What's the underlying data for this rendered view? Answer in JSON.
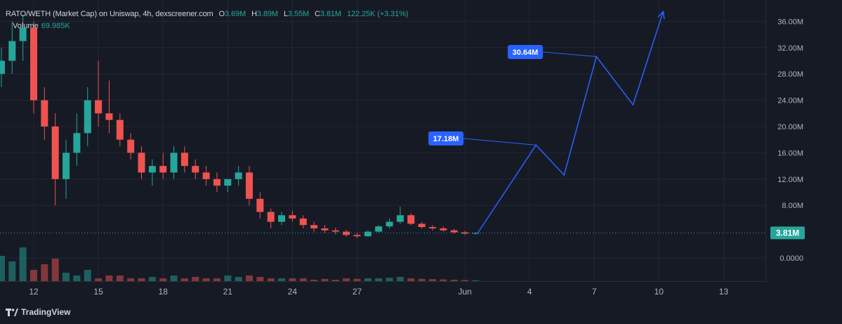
{
  "header": {
    "title": "RATO/WETH (Market Cap) on Uniswap, 4h, dexscreener.com",
    "open_label": "O",
    "open_value": "3.69M",
    "high_label": "H",
    "high_value": "3.89M",
    "low_label": "L",
    "low_value": "3.55M",
    "close_label": "C",
    "close_value": "3.81M",
    "change_value": "122.25K (+3.31%)"
  },
  "volume": {
    "label": "Volume",
    "value": "69.985K"
  },
  "brand": {
    "name": "TradingView"
  },
  "colors": {
    "background": "#161a25",
    "up": "#26a69a",
    "down": "#ef5350",
    "projection": "#2962ff",
    "grid": "#232734",
    "axis_text": "#b2b5be"
  },
  "chart_data": {
    "type": "candlestick",
    "y_axis": {
      "position": "right",
      "min": 0,
      "max": 38,
      "ticks": [
        "36.00M",
        "32.00M",
        "28.00M",
        "24.00M",
        "20.00M",
        "16.00M",
        "12.00M",
        "8.00M",
        "0.0000"
      ],
      "tick_values": [
        36,
        32,
        28,
        24,
        20,
        16,
        12,
        8,
        0
      ]
    },
    "x_axis": {
      "ticks": [
        "12",
        "15",
        "18",
        "21",
        "24",
        "27",
        "Jun",
        "4",
        "7",
        "10",
        "13"
      ],
      "tick_positions_days": [
        12,
        15,
        18,
        21,
        24,
        27,
        32,
        35,
        38,
        41,
        44
      ]
    },
    "last_price": {
      "label": "3.81M",
      "value": 3.81
    },
    "candles": [
      [
        10.0,
        25,
        30,
        24,
        28
      ],
      [
        10.5,
        28,
        32,
        26,
        30
      ],
      [
        11.0,
        30,
        36,
        28,
        33
      ],
      [
        11.5,
        33,
        37,
        30,
        35
      ],
      [
        12.0,
        35,
        36,
        22,
        24
      ],
      [
        12.5,
        24,
        26,
        18,
        20
      ],
      [
        13.0,
        20,
        22,
        8,
        12
      ],
      [
        13.5,
        12,
        18,
        9,
        16
      ],
      [
        14.0,
        16,
        22,
        14,
        19
      ],
      [
        14.5,
        19,
        26,
        17,
        24
      ],
      [
        15.0,
        24,
        30,
        20,
        22
      ],
      [
        15.5,
        22,
        27,
        19,
        21
      ],
      [
        16.0,
        21,
        22,
        17,
        18
      ],
      [
        16.5,
        18,
        19,
        15,
        16
      ],
      [
        17.0,
        16,
        17,
        12,
        13
      ],
      [
        17.5,
        13,
        15,
        11,
        14
      ],
      [
        18.0,
        14,
        16,
        12,
        13
      ],
      [
        18.5,
        13,
        17,
        12,
        16
      ],
      [
        19.0,
        16,
        17,
        13,
        14
      ],
      [
        19.5,
        14,
        15,
        12,
        13
      ],
      [
        20.0,
        13,
        14,
        11,
        12
      ],
      [
        20.5,
        12,
        13,
        10,
        11
      ],
      [
        21.0,
        11,
        12,
        10,
        12
      ],
      [
        21.5,
        12,
        14,
        11,
        13
      ],
      [
        22.0,
        13,
        14,
        8,
        9
      ],
      [
        22.5,
        9,
        10,
        6,
        7
      ],
      [
        23.0,
        7,
        7.5,
        4.5,
        5.5
      ],
      [
        23.5,
        5.5,
        7,
        5,
        6.5
      ],
      [
        24.0,
        6.5,
        7.2,
        5.5,
        6
      ],
      [
        24.5,
        6,
        6.5,
        4.5,
        5
      ],
      [
        25.0,
        5,
        5.5,
        4,
        4.5
      ],
      [
        25.5,
        4.5,
        5,
        3.8,
        4.2
      ],
      [
        26.0,
        4.2,
        4.6,
        3.6,
        4
      ],
      [
        26.5,
        4,
        4.3,
        3.2,
        3.5
      ],
      [
        27.0,
        3.5,
        3.9,
        3,
        3.3
      ],
      [
        27.5,
        3.3,
        4.2,
        3.2,
        4
      ],
      [
        28.0,
        4,
        5,
        3.9,
        4.8
      ],
      [
        28.5,
        4.8,
        6,
        4.5,
        5.5
      ],
      [
        29.0,
        5.5,
        7.8,
        5.2,
        6.5
      ],
      [
        29.5,
        6.5,
        6.8,
        5,
        5.2
      ],
      [
        30.0,
        5.2,
        5.5,
        4.5,
        4.7
      ],
      [
        30.5,
        4.7,
        5,
        4.2,
        4.5
      ],
      [
        31.0,
        4.5,
        4.8,
        4,
        4.2
      ],
      [
        31.5,
        4.2,
        4.4,
        3.7,
        3.9
      ],
      [
        32.0,
        3.9,
        4.1,
        3.5,
        3.7
      ],
      [
        32.5,
        3.69,
        3.89,
        3.55,
        3.81
      ]
    ],
    "volumes": [
      5,
      9,
      7,
      12,
      4,
      6,
      8,
      3,
      2,
      4,
      1,
      2,
      2,
      1,
      1,
      1.5,
      1,
      2,
      1,
      1.5,
      1,
      1,
      2,
      1.5,
      2,
      1.5,
      1,
      1,
      1,
      1,
      0.5,
      0.8,
      0.5,
      1,
      0.8,
      1,
      1,
      1.2,
      1.5,
      1,
      0.8,
      0.7,
      0.6,
      0.5,
      0.4,
      0.3
    ],
    "projection_path": [
      [
        32.6,
        3.81
      ],
      [
        35.3,
        17.18
      ],
      [
        36.6,
        12.6
      ],
      [
        38.1,
        30.64
      ],
      [
        39.8,
        23.3
      ],
      [
        41.2,
        37.5
      ]
    ],
    "callouts": [
      {
        "label": "17.18M",
        "value": 17.18,
        "day": 35.3
      },
      {
        "label": "30.64M",
        "value": 30.64,
        "day": 38.1
      }
    ]
  }
}
